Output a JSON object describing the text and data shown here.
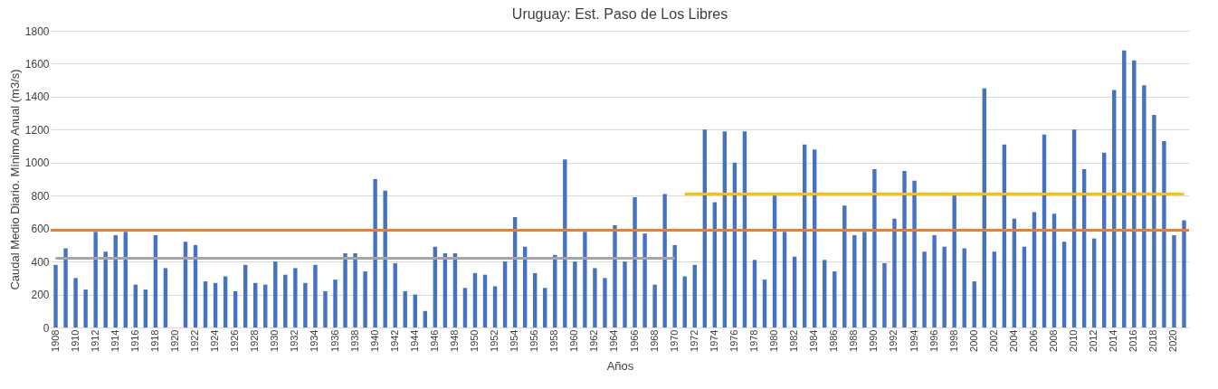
{
  "chart_data": {
    "type": "bar",
    "title": "Uruguay: Est. Paso de Los Libres",
    "xlabel": "Años",
    "ylabel": "Caudal Medio Diario. Mínimo Anual (m3/s)",
    "categories": [
      "1908",
      null,
      "1910",
      null,
      "1912",
      null,
      "1914",
      null,
      "1916",
      null,
      "1918",
      null,
      "1920",
      null,
      "1922",
      null,
      "1924",
      null,
      "1926",
      null,
      "1928",
      null,
      "1930",
      null,
      "1932",
      null,
      "1934",
      null,
      "1936",
      null,
      "1938",
      null,
      "1940",
      null,
      "1942",
      null,
      "1944",
      null,
      "1946",
      null,
      "1948",
      null,
      "1950",
      null,
      "1952",
      null,
      "1954",
      null,
      "1956",
      null,
      "1958",
      null,
      "1960",
      null,
      "1962",
      null,
      "1964",
      null,
      "1966",
      null,
      "1968",
      null,
      "1970",
      null,
      "1972",
      null,
      "1974",
      null,
      "1976",
      null,
      "1978",
      null,
      "1980",
      null,
      "1982",
      null,
      "1984",
      null,
      "1986",
      null,
      "1988",
      null,
      "1990",
      null,
      "1992",
      null,
      "1994",
      null,
      "1996",
      null,
      "1998",
      null,
      "2000",
      null,
      "2002",
      null,
      "2004",
      null,
      "2006",
      null,
      "2008",
      null,
      "2010",
      null,
      "2012",
      null,
      "2014",
      null,
      "2016",
      null,
      "2018",
      null,
      "2020",
      null
    ],
    "series": [
      {
        "color": "#4472c4",
        "values": [
          380,
          480,
          300,
          230,
          580,
          460,
          560,
          580,
          260,
          230,
          560,
          360,
          null,
          520,
          500,
          280,
          270,
          310,
          220,
          380,
          270,
          260,
          400,
          320,
          360,
          270,
          380,
          220,
          290,
          450,
          450,
          340,
          900,
          830,
          390,
          220,
          200,
          100,
          490,
          450,
          450,
          240,
          330,
          320,
          250,
          400,
          670,
          490,
          330,
          240,
          440,
          1020,
          400,
          580,
          360,
          300,
          620,
          400,
          790,
          570,
          260,
          810,
          500,
          310,
          380,
          1200,
          760,
          1190,
          1000,
          1190,
          410,
          290,
          800,
          580,
          430,
          1110,
          1080,
          410,
          340,
          740,
          560,
          580,
          960,
          390,
          660,
          950,
          890,
          460,
          560,
          490,
          800,
          480,
          280,
          1450,
          460,
          1110,
          660,
          490,
          700,
          1170,
          690,
          520,
          1200,
          960,
          540,
          1060,
          1440,
          1680,
          1620,
          1470,
          1290,
          1130,
          560,
          650
        ]
      },
      {
        "type": "line",
        "color": "#a5a5a5",
        "values": [
          420,
          420,
          420,
          420,
          420,
          420,
          420,
          420,
          420,
          420,
          420,
          420,
          420,
          420,
          420,
          420,
          420,
          420,
          420,
          420,
          420,
          420,
          420,
          420,
          420,
          420,
          420,
          420,
          420,
          420,
          420,
          420,
          420,
          420,
          420,
          420,
          420,
          420,
          420,
          420,
          420,
          420,
          420,
          420,
          420,
          420,
          420,
          420,
          420,
          420,
          420,
          420,
          420,
          420,
          420,
          420,
          420,
          420,
          420,
          420,
          420,
          420,
          420,
          null,
          null,
          null,
          null,
          null,
          null,
          null,
          null,
          null,
          null,
          null,
          null,
          null,
          null,
          null,
          null,
          null,
          null,
          null,
          null,
          null,
          null,
          null,
          null,
          null,
          null,
          null,
          null,
          null,
          null,
          null,
          null,
          null,
          null,
          null,
          null,
          null,
          null,
          null,
          null,
          null,
          null,
          null,
          null,
          null,
          null,
          null,
          null,
          null,
          null,
          null
        ]
      },
      {
        "type": "line",
        "color": "#ffc000",
        "values": [
          null,
          null,
          null,
          null,
          null,
          null,
          null,
          null,
          null,
          null,
          null,
          null,
          null,
          null,
          null,
          null,
          null,
          null,
          null,
          null,
          null,
          null,
          null,
          null,
          null,
          null,
          null,
          null,
          null,
          null,
          null,
          null,
          null,
          null,
          null,
          null,
          null,
          null,
          null,
          null,
          null,
          null,
          null,
          null,
          null,
          null,
          null,
          null,
          null,
          null,
          null,
          null,
          null,
          null,
          null,
          null,
          null,
          null,
          null,
          null,
          null,
          null,
          null,
          810,
          810,
          810,
          810,
          810,
          810,
          810,
          810,
          810,
          810,
          810,
          810,
          810,
          810,
          810,
          810,
          810,
          810,
          810,
          810,
          810,
          810,
          810,
          810,
          810,
          810,
          810,
          810,
          810,
          810,
          810,
          810,
          810,
          810,
          810,
          810,
          810,
          810,
          810,
          810,
          810,
          810,
          810,
          810,
          810,
          810,
          810,
          810,
          810,
          810,
          810
        ]
      }
    ],
    "ref_lines": [
      {
        "axis": "y",
        "value": 590,
        "color": "#ed7d31"
      }
    ],
    "ylim": [
      0,
      1800
    ],
    "yticks": [
      0,
      200,
      400,
      600,
      800,
      1000,
      1200,
      1400,
      1600,
      1800
    ],
    "grid": "y"
  }
}
